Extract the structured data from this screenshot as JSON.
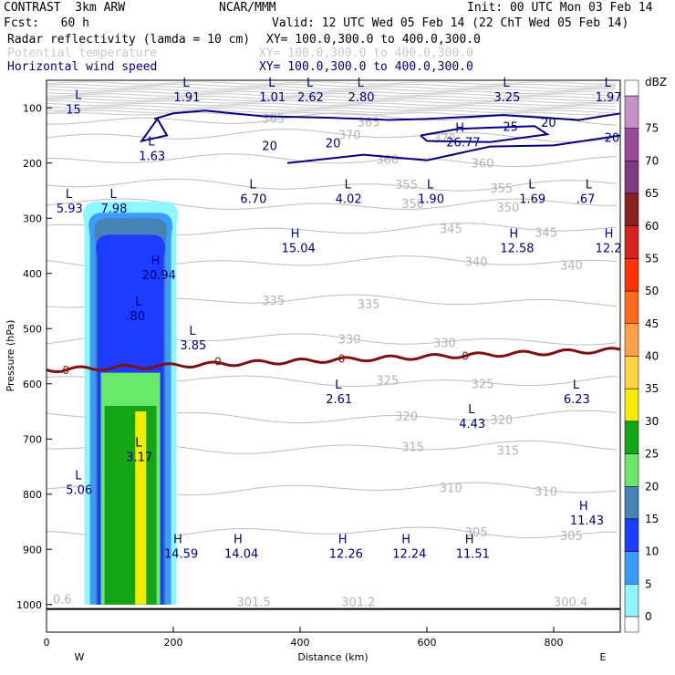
{
  "header": {
    "model": "CONTRAST  3km ARW",
    "center": "NCAR/MMM",
    "init": "Init: 00 UTC Mon 03 Feb 14",
    "fcst": "Fcst:   60 h",
    "valid": "Valid: 12 UTC Wed 05 Feb 14 (22 ChT Wed 05 Feb 14)",
    "field1": "Radar reflectivity (lamda = 10 cm)",
    "field1_xy": "XY= 100.0,300.0 to 400.0,300.0",
    "field2": "Potential temperature",
    "field2_xy": "XY= 100.0,300.0 to 400.0,300.0",
    "field3": "Horizontal wind speed",
    "field3_xy": "XY= 100.0,300.0 to 400.0,300.0"
  },
  "chart_data": {
    "type": "heatmap",
    "xlabel": "Distance (km)",
    "ylabel": "Pressure (hPa)",
    "xlim": [
      0,
      905
    ],
    "ylim": [
      1050,
      50
    ],
    "xticks": [
      0,
      200,
      400,
      600,
      800
    ],
    "yticks": [
      100,
      200,
      300,
      400,
      500,
      600,
      700,
      800,
      900,
      1000
    ],
    "x_end_labels": {
      "left": "W",
      "right": "E"
    },
    "colorbar": {
      "unit": "dBZ",
      "levels": [
        75,
        70,
        65,
        60,
        55,
        50,
        45,
        40,
        35,
        30,
        25,
        20,
        15,
        10,
        5,
        0
      ],
      "colors": [
        "#c891c8",
        "#9b4a9b",
        "#7f3a7f",
        "#8b2020",
        "#d62020",
        "#ff3300",
        "#ff6a1a",
        "#ff9f4a",
        "#ffd23f",
        "#f5ec00",
        "#14a514",
        "#6ae86a",
        "#4682b4",
        "#1e3cff",
        "#3a9cff",
        "#8ef6ff"
      ]
    },
    "radar_column": {
      "x_range_km": [
        80,
        185
      ],
      "top_hPa": 275,
      "max_dBZ": 40
    },
    "isentropes_K": [
      365,
      370,
      360,
      355,
      350,
      345,
      340,
      335,
      330,
      325,
      320,
      315,
      310,
      305
    ],
    "wind_contours": [
      {
        "label": "20",
        "positions_km": [
          [
            780,
            128
          ],
          [
            880,
            155
          ],
          [
            440,
            165
          ],
          [
            340,
            170
          ]
        ]
      },
      {
        "label": "25",
        "positions_km": [
          [
            720,
            135
          ]
        ]
      }
    ],
    "extrema": [
      {
        "type": "L",
        "value": "15",
        "x": 45,
        "p": 100
      },
      {
        "type": "L",
        "value": "1.91",
        "x": 215,
        "p": 78
      },
      {
        "type": "L",
        "value": "1.01",
        "x": 350,
        "p": 78
      },
      {
        "type": "L",
        "value": "2.62",
        "x": 410,
        "p": 78
      },
      {
        "type": "L",
        "value": "2.80",
        "x": 490,
        "p": 78
      },
      {
        "type": "L",
        "value": "3.25",
        "x": 720,
        "p": 78
      },
      {
        "type": "L",
        "value": "1.97",
        "x": 880,
        "p": 78
      },
      {
        "type": "L",
        "value": "1.63",
        "x": 160,
        "p": 185
      },
      {
        "type": "H",
        "value": "26.77",
        "x": 645,
        "p": 160
      },
      {
        "type": "L",
        "value": "6.70",
        "x": 320,
        "p": 262
      },
      {
        "type": "L",
        "value": "4.02",
        "x": 470,
        "p": 262
      },
      {
        "type": "L",
        "value": "1.90",
        "x": 600,
        "p": 262
      },
      {
        "type": "L",
        "value": "1.69",
        "x": 760,
        "p": 262
      },
      {
        "type": "L",
        "value": ".67",
        "x": 850,
        "p": 262
      },
      {
        "type": "L",
        "value": "5.93",
        "x": 30,
        "p": 280
      },
      {
        "type": "L",
        "value": "7.98",
        "x": 100,
        "p": 280
      },
      {
        "type": "H",
        "value": "15.04",
        "x": 385,
        "p": 352
      },
      {
        "type": "H",
        "value": "12.58",
        "x": 730,
        "p": 352
      },
      {
        "type": "H",
        "value": "12.2",
        "x": 880,
        "p": 352
      },
      {
        "type": "H",
        "value": "20.94",
        "x": 165,
        "p": 400
      },
      {
        "type": "L",
        "value": ".80",
        "x": 140,
        "p": 475
      },
      {
        "type": "L",
        "value": "3.85",
        "x": 225,
        "p": 528
      },
      {
        "type": "L",
        "value": "2.61",
        "x": 455,
        "p": 625
      },
      {
        "type": "L",
        "value": "6.23",
        "x": 830,
        "p": 625
      },
      {
        "type": "L",
        "value": "4.43",
        "x": 665,
        "p": 670
      },
      {
        "type": "L",
        "value": "3.17",
        "x": 140,
        "p": 730
      },
      {
        "type": "L",
        "value": "5.06",
        "x": 45,
        "p": 790
      },
      {
        "type": "H",
        "value": "14.59",
        "x": 200,
        "p": 905
      },
      {
        "type": "H",
        "value": "14.04",
        "x": 295,
        "p": 905
      },
      {
        "type": "H",
        "value": "12.26",
        "x": 460,
        "p": 905
      },
      {
        "type": "H",
        "value": "12.24",
        "x": 560,
        "p": 905
      },
      {
        "type": "H",
        "value": "11.51",
        "x": 660,
        "p": 905
      },
      {
        "type": "H",
        "value": "11.43",
        "x": 840,
        "p": 845
      }
    ],
    "surface_theta_labels": [
      {
        "text": "0.6",
        "x": 10,
        "p": 990
      },
      {
        "text": "301.5",
        "x": 300,
        "p": 995
      },
      {
        "text": "301.2",
        "x": 465,
        "p": 995
      },
      {
        "text": "300.4",
        "x": 800,
        "p": 995
      }
    ],
    "freezing_level_label": "0"
  }
}
